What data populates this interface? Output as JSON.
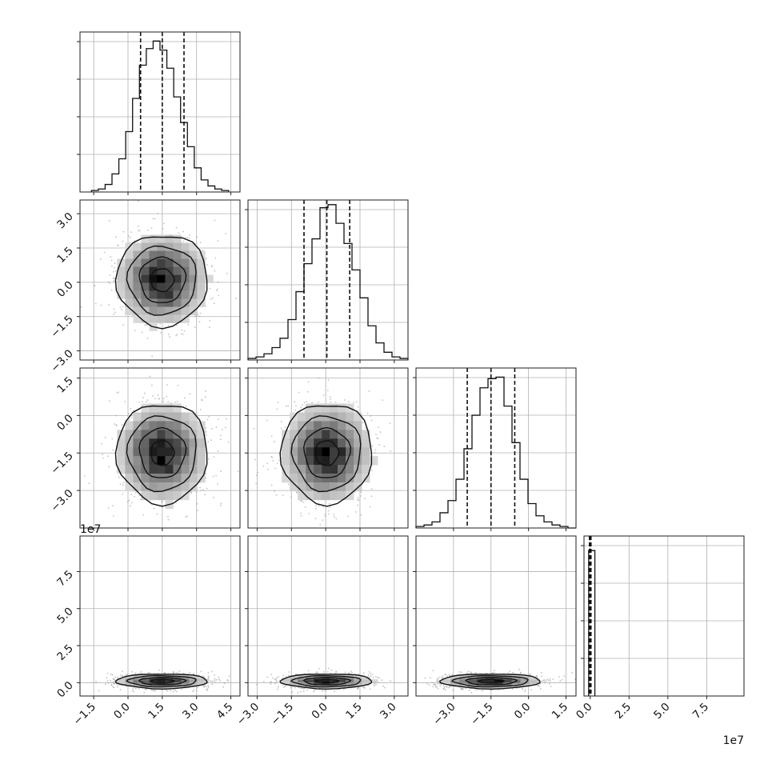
{
  "chart_data": {
    "type": "corner",
    "title": "",
    "grid": true,
    "parameters": [
      {
        "index": 0,
        "xlim": [
          -2.1,
          4.9
        ],
        "ticks": [
          "−1.5",
          "0.0",
          "1.5",
          "3.0",
          "4.5"
        ],
        "tick_values": [
          -1.5,
          0.0,
          1.5,
          3.0,
          4.5
        ]
      },
      {
        "index": 1,
        "xlim": [
          -3.4,
          3.6
        ],
        "ticks": [
          "−3.0",
          "−1.5",
          "0.0",
          "1.5",
          "3.0"
        ],
        "tick_values": [
          -3.0,
          -1.5,
          0.0,
          1.5,
          3.0
        ]
      },
      {
        "index": 2,
        "xlim": [
          -4.5,
          1.9
        ],
        "ticks": [
          "−3.0",
          "−1.5",
          "0.0",
          "1.5"
        ],
        "tick_values": [
          -3.0,
          -1.5,
          0.0,
          1.5
        ]
      },
      {
        "index": 3,
        "xlim": [
          -0.4,
          9.9
        ],
        "ticks": [
          "0.0",
          "2.5",
          "5.0",
          "7.5"
        ],
        "tick_values": [
          0.0,
          2.5,
          5.0,
          7.5
        ],
        "offset_label": "1e7"
      }
    ],
    "diagonal_histograms": [
      {
        "param": 0,
        "quantile_lines": [
          0.55,
          1.5,
          2.45
        ],
        "bin_edges": [
          -1.6,
          -1.3,
          -1.0,
          -0.7,
          -0.4,
          -0.1,
          0.2,
          0.5,
          0.8,
          1.1,
          1.4,
          1.7,
          2.0,
          2.3,
          2.6,
          2.9,
          3.2,
          3.5,
          3.8,
          4.1,
          4.4
        ],
        "counts": [
          0.01,
          0.02,
          0.05,
          0.12,
          0.22,
          0.4,
          0.62,
          0.84,
          0.95,
          1.0,
          0.94,
          0.82,
          0.63,
          0.46,
          0.3,
          0.16,
          0.08,
          0.04,
          0.02,
          0.01
        ],
        "ymax": 1.06
      },
      {
        "param": 1,
        "quantile_lines": [
          -0.95,
          0.05,
          1.05
        ],
        "bin_edges": [
          -3.4,
          -3.05,
          -2.7,
          -2.35,
          -2.0,
          -1.65,
          -1.3,
          -0.95,
          -0.6,
          -0.25,
          0.1,
          0.45,
          0.8,
          1.15,
          1.5,
          1.85,
          2.2,
          2.55,
          2.9,
          3.25,
          3.6
        ],
        "counts": [
          0.01,
          0.02,
          0.04,
          0.08,
          0.14,
          0.26,
          0.44,
          0.62,
          0.78,
          0.98,
          1.0,
          0.88,
          0.75,
          0.58,
          0.4,
          0.22,
          0.11,
          0.05,
          0.02,
          0.01
        ],
        "ymax": 1.03
      },
      {
        "param": 2,
        "quantile_lines": [
          -2.45,
          -1.5,
          -0.55
        ],
        "bin_edges": [
          -4.5,
          -4.18,
          -3.86,
          -3.54,
          -3.22,
          -2.9,
          -2.58,
          -2.26,
          -1.94,
          -1.62,
          -1.3,
          -0.98,
          -0.66,
          -0.34,
          -0.02,
          0.3,
          0.62,
          0.94,
          1.26,
          1.58,
          1.9
        ],
        "counts": [
          0.01,
          0.02,
          0.04,
          0.1,
          0.18,
          0.32,
          0.52,
          0.74,
          0.92,
          0.98,
          0.99,
          0.8,
          0.56,
          0.32,
          0.16,
          0.08,
          0.04,
          0.02,
          0.01,
          0.0
        ],
        "ymax": 1.05
      },
      {
        "param": 3,
        "quantile_lines": [
          -0.05,
          0.0,
          0.05
        ],
        "bin_edges": [
          -0.1,
          0.3
        ],
        "counts": [
          1.0
        ],
        "ymax": 1.1
      }
    ],
    "panels_2d": [
      {
        "x_param": 0,
        "y_param": 1,
        "ylim": [
          -3.4,
          3.6
        ],
        "yticks": [
          "−3.0",
          "−1.5",
          "0.0",
          "1.5",
          "3.0"
        ],
        "ytick_values": [
          -3.0,
          -1.5,
          0.0,
          1.5,
          3.0
        ],
        "mean": [
          1.5,
          0.1
        ],
        "sigma": [
          1.0,
          1.0
        ]
      },
      {
        "x_param": 0,
        "y_param": 2,
        "ylim": [
          -4.5,
          1.9
        ],
        "yticks": [
          "−3.0",
          "−1.5",
          "0.0",
          "1.5"
        ],
        "ytick_values": [
          -3.0,
          -1.5,
          0.0,
          1.5
        ],
        "mean": [
          1.5,
          -1.5
        ],
        "sigma": [
          1.0,
          1.0
        ]
      },
      {
        "x_param": 1,
        "y_param": 2,
        "ylim": [
          -4.5,
          1.9
        ],
        "yticks": [
          "−3.0",
          "−1.5",
          "0.0",
          "1.5"
        ],
        "ytick_values": [
          -3.0,
          -1.5,
          0.0,
          1.5
        ],
        "mean": [
          0.05,
          -1.5
        ],
        "sigma": [
          1.0,
          1.0
        ]
      },
      {
        "x_param": 0,
        "y_param": 3,
        "ylim": [
          -0.9,
          9.9
        ],
        "yticks": [
          "0.0",
          "2.5",
          "5.0",
          "7.5"
        ],
        "ytick_values": [
          0.0,
          2.5,
          5.0,
          7.5
        ],
        "offset_label": "1e7",
        "mean": [
          1.5,
          0.1
        ],
        "sigma": [
          1.0,
          0.25
        ]
      },
      {
        "x_param": 1,
        "y_param": 3,
        "ylim": [
          -0.9,
          9.9
        ],
        "yticks": [],
        "ytick_values": [
          0.0,
          2.5,
          5.0,
          7.5
        ],
        "mean": [
          0.05,
          0.1
        ],
        "sigma": [
          1.0,
          0.25
        ]
      },
      {
        "x_param": 2,
        "y_param": 3,
        "ylim": [
          -0.9,
          9.9
        ],
        "yticks": [],
        "ytick_values": [
          0.0,
          2.5,
          5.0,
          7.5
        ],
        "mean": [
          -1.5,
          0.1
        ],
        "sigma": [
          1.0,
          0.25
        ]
      }
    ]
  }
}
